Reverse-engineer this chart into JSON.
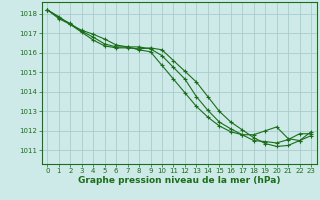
{
  "background_color": "#ceeae8",
  "grid_color": "#aacccc",
  "line_color": "#1a6e1a",
  "xlabel": "Graphe pression niveau de la mer (hPa)",
  "xlabel_fontsize": 6.5,
  "xtick_fontsize": 5.0,
  "ytick_fontsize": 5.0,
  "xlim": [
    -0.5,
    23.5
  ],
  "ylim": [
    1010.3,
    1018.6
  ],
  "yticks": [
    1011,
    1012,
    1013,
    1014,
    1015,
    1016,
    1017,
    1018
  ],
  "xticks": [
    0,
    1,
    2,
    3,
    4,
    5,
    6,
    7,
    8,
    9,
    10,
    11,
    12,
    13,
    14,
    15,
    16,
    17,
    18,
    19,
    20,
    21,
    22,
    23
  ],
  "line1_x": [
    0,
    1,
    2,
    3,
    4,
    5,
    6,
    7,
    8,
    9,
    10,
    11,
    12,
    13,
    14,
    15,
    16,
    17,
    18,
    19,
    20,
    21,
    22,
    23
  ],
  "line1_y": [
    1018.2,
    1017.85,
    1017.45,
    1017.05,
    1016.65,
    1016.35,
    1016.25,
    1016.25,
    1016.2,
    1016.25,
    1016.15,
    1015.6,
    1015.05,
    1014.5,
    1013.75,
    1013.0,
    1012.45,
    1012.05,
    1011.65,
    1011.35,
    1011.2,
    1011.25,
    1011.5,
    1011.95
  ],
  "line2_x": [
    0,
    1,
    2,
    3,
    4,
    5,
    6,
    7,
    8,
    9,
    10,
    11,
    12,
    13,
    14,
    15,
    16,
    17,
    18,
    19,
    20,
    21,
    22,
    23
  ],
  "line2_y": [
    1018.2,
    1017.8,
    1017.5,
    1017.1,
    1016.8,
    1016.45,
    1016.3,
    1016.3,
    1016.3,
    1016.2,
    1015.85,
    1015.25,
    1014.65,
    1013.75,
    1013.05,
    1012.45,
    1012.1,
    1011.8,
    1011.5,
    1011.45,
    1011.38,
    1011.55,
    1011.85,
    1011.85
  ],
  "line3_x": [
    0,
    1,
    2,
    3,
    4,
    5,
    6,
    7,
    8,
    9,
    10,
    11,
    12,
    13,
    14,
    15,
    16,
    17,
    18,
    19,
    20,
    21,
    22,
    23
  ],
  "line3_y": [
    1018.2,
    1017.75,
    1017.45,
    1017.15,
    1016.95,
    1016.7,
    1016.4,
    1016.3,
    1016.15,
    1016.05,
    1015.35,
    1014.65,
    1013.95,
    1013.25,
    1012.7,
    1012.25,
    1011.95,
    1011.8,
    1011.8,
    1012.0,
    1012.2,
    1011.6,
    1011.5,
    1011.75
  ]
}
